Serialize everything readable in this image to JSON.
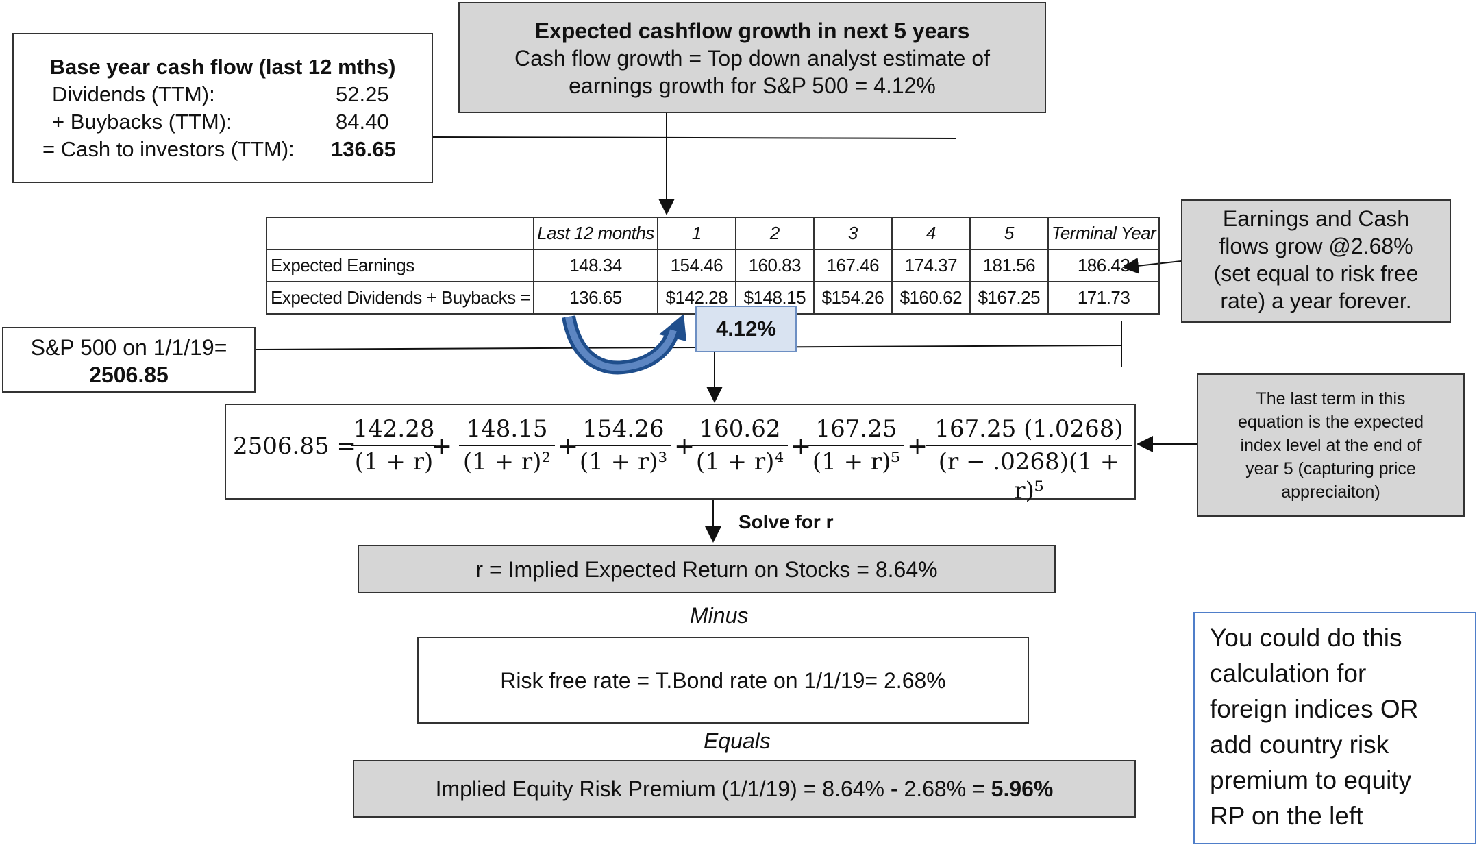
{
  "base": {
    "title": "Base year cash flow  (last 12 mths)",
    "rows": [
      {
        "label": "Dividends (TTM):",
        "value": "52.25"
      },
      {
        "label": "+ Buybacks (TTM):",
        "value": "84.40"
      },
      {
        "label": "= Cash to investors (TTM):",
        "value": "136.65"
      }
    ]
  },
  "growth": {
    "title": "Expected cashflow growth in next 5 years",
    "line1": "Cash flow growth = Top down analyst estimate of",
    "line2": "earnings growth for S&P 500 = 4.12%"
  },
  "table": {
    "headers": [
      "",
      "Last 12 months",
      "1",
      "2",
      "3",
      "4",
      "5",
      "Terminal Year"
    ],
    "rows": [
      [
        "Expected Earnings",
        "148.34",
        "154.46",
        "160.83",
        "167.46",
        "174.37",
        "181.56",
        "186.43"
      ],
      [
        "Expected Dividends + Buybacks =",
        "136.65",
        "$142.28",
        "$148.15",
        "$154.26",
        "$160.62",
        "$167.25",
        "171.73"
      ]
    ]
  },
  "grow_note": [
    "Earnings and Cash",
    "flows grow @2.68%",
    "(set equal to risk free",
    "rate) a year forever."
  ],
  "sp": {
    "line1": "S&P 500 on 1/1/19=",
    "value": "2506.85"
  },
  "growth_callout": "4.12%",
  "equation": {
    "lhs": "2506.85 =",
    "terms": [
      {
        "num": "142.28",
        "den": "(1 + r)"
      },
      {
        "num": "148.15",
        "den": "(1 + r)²"
      },
      {
        "num": "154.26",
        "den": "(1 + r)³"
      },
      {
        "num": "160.62",
        "den": "(1 + r)⁴"
      },
      {
        "num": "167.25",
        "den": "(1 + r)⁵"
      },
      {
        "num": "167.25 (1.0268)",
        "den": "(r − .0268)(1 + r)⁵"
      }
    ],
    "plus": "+"
  },
  "term_note": [
    "The last term in this",
    "equation is the expected",
    "index level at the end of",
    "year 5 (capturing price",
    "appreciaiton)"
  ],
  "solve": "Solve for r",
  "implied_return": "r = Implied Expected Return on Stocks = 8.64%",
  "minus": "Minus",
  "risk_free": "Risk free rate = T.Bond rate on 1/1/19= 2.68%",
  "equals": "Equals",
  "erp": {
    "text": "Implied Equity Risk Premium (1/1/19) = 8.64% - 2.68% = ",
    "value": "5.96%"
  },
  "foreign_note": [
    "You could do this",
    "calculation for",
    "foreign indices OR",
    "add country risk",
    "premium to equity",
    "RP on the left"
  ]
}
